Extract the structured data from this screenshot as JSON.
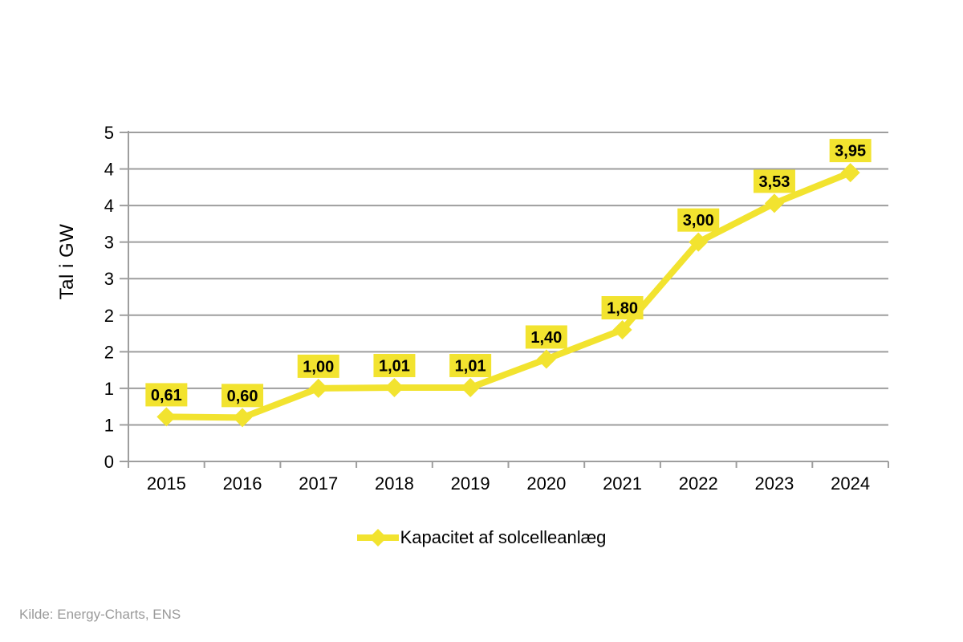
{
  "chart": {
    "y_axis_title": "Tal i GW",
    "legend": {
      "label": "Kapacitet af solcelleanlæg"
    },
    "source_note": "Kilde: Energy-Charts, ENS"
  },
  "colors": {
    "series_yellow": "#F2E32F",
    "grid_gray": "#9E9E9E",
    "axis_gray": "#9E9E9E",
    "tick_label_black": "#000000",
    "data_label_text": "#000000",
    "source_gray": "#9A9A9A",
    "background": "#FFFFFF"
  },
  "chart_data": {
    "type": "line",
    "title": "",
    "categories": [
      "2015",
      "2016",
      "2017",
      "2018",
      "2019",
      "2020",
      "2021",
      "2022",
      "2023",
      "2024"
    ],
    "series": [
      {
        "name": "Kapacitet af solcelleanlæg",
        "values": [
          0.61,
          0.6,
          1.0,
          1.01,
          1.01,
          1.4,
          1.8,
          3.0,
          3.53,
          3.95
        ],
        "data_labels": [
          "0,61",
          "0,60",
          "1,00",
          "1,01",
          "1,01",
          "1,40",
          "1,80",
          "3,00",
          "3,53",
          "3,95"
        ]
      }
    ],
    "xlabel": "",
    "ylabel": "Tal i GW",
    "ylim": [
      0,
      4.5
    ],
    "y_gridline_step": 0.5,
    "y_tick_labels_top_down": [
      "5",
      "4",
      "4",
      "3",
      "3",
      "2",
      "2",
      "1",
      "1",
      "0"
    ],
    "grid": true,
    "legend_position": "bottom",
    "marker": "diamond",
    "decimal_separator": ","
  }
}
